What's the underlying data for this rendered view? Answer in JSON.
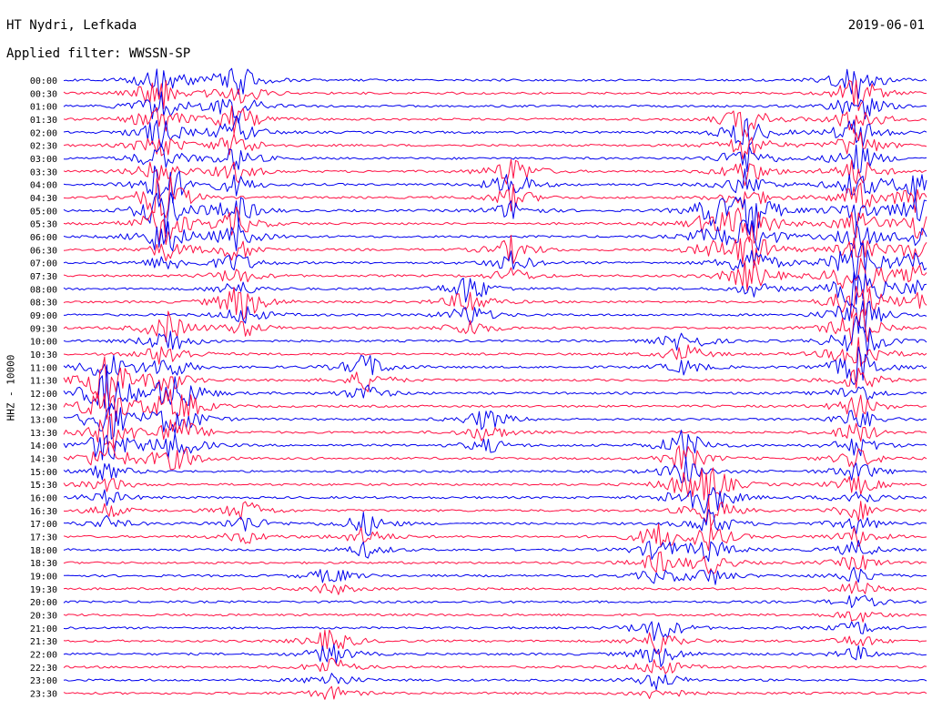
{
  "header": {
    "station": "HT Nydri, Lefkada",
    "filter": "Applied filter: WWSSN-SP",
    "date": "2019-06-01"
  },
  "y_axis_label": "HHZ - 10000",
  "colors": {
    "even_trace": "#0000ee",
    "odd_trace": "#ff1144"
  },
  "chart_data": {
    "type": "line",
    "title": "HT Nydri, Lefkada",
    "subtitle": "Applied filter: WWSSN-SP",
    "ylabel": "HHZ - 10000",
    "row_labels": [
      "00:00",
      "00:30",
      "01:00",
      "01:30",
      "02:00",
      "02:30",
      "03:00",
      "03:30",
      "04:00",
      "04:30",
      "05:00",
      "05:30",
      "06:00",
      "06:30",
      "07:00",
      "07:30",
      "08:00",
      "08:30",
      "09:00",
      "09:30",
      "10:00",
      "10:30",
      "11:00",
      "11:30",
      "12:00",
      "12:30",
      "13:00",
      "13:30",
      "14:00",
      "14:30",
      "15:00",
      "15:30",
      "16:00",
      "16:30",
      "17:00",
      "17:30",
      "18:00",
      "18:30",
      "19:00",
      "19:30",
      "20:00",
      "20:30",
      "21:00",
      "21:30",
      "22:00",
      "22:30",
      "23:00",
      "23:30"
    ],
    "x_domain": [
      0,
      1
    ],
    "events": [
      {
        "t": 0.05,
        "start": 22,
        "end": 29,
        "amp": 1.7
      },
      {
        "t": 0.05,
        "start": 23,
        "end": 34,
        "amp": 1.4
      },
      {
        "t": 0.11,
        "start": 0,
        "end": 12,
        "amp": 2.0
      },
      {
        "t": 0.12,
        "start": 8,
        "end": 14,
        "amp": 1.8
      },
      {
        "t": 0.12,
        "start": 19,
        "end": 29,
        "amp": 1.7
      },
      {
        "t": 0.14,
        "start": 24,
        "end": 29,
        "amp": 1.3
      },
      {
        "t": 0.2,
        "start": 0,
        "end": 8,
        "amp": 2.0
      },
      {
        "t": 0.2,
        "start": 10,
        "end": 17,
        "amp": 1.6
      },
      {
        "t": 0.21,
        "start": 17,
        "end": 19,
        "amp": 1.4
      },
      {
        "t": 0.21,
        "start": 33,
        "end": 35,
        "amp": 1.2
      },
      {
        "t": 0.31,
        "start": 38,
        "end": 39,
        "amp": 1.0
      },
      {
        "t": 0.31,
        "start": 43,
        "end": 47,
        "amp": 1.4
      },
      {
        "t": 0.35,
        "start": 22,
        "end": 24,
        "amp": 1.5
      },
      {
        "t": 0.35,
        "start": 34,
        "end": 36,
        "amp": 1.3
      },
      {
        "t": 0.47,
        "start": 16,
        "end": 19,
        "amp": 1.7
      },
      {
        "t": 0.49,
        "start": 26,
        "end": 28,
        "amp": 1.3
      },
      {
        "t": 0.52,
        "start": 7,
        "end": 10,
        "amp": 1.8
      },
      {
        "t": 0.52,
        "start": 13,
        "end": 15,
        "amp": 1.4
      },
      {
        "t": 0.69,
        "start": 35,
        "end": 38,
        "amp": 1.5
      },
      {
        "t": 0.69,
        "start": 42,
        "end": 47,
        "amp": 1.6
      },
      {
        "t": 0.72,
        "start": 20,
        "end": 22,
        "amp": 1.3
      },
      {
        "t": 0.72,
        "start": 28,
        "end": 32,
        "amp": 1.8
      },
      {
        "t": 0.75,
        "start": 10,
        "end": 13,
        "amp": 1.3
      },
      {
        "t": 0.75,
        "start": 31,
        "end": 38,
        "amp": 1.9
      },
      {
        "t": 0.79,
        "start": 3,
        "end": 15,
        "amp": 1.9
      },
      {
        "t": 0.8,
        "start": 10,
        "end": 16,
        "amp": 1.5
      },
      {
        "t": 0.92,
        "start": 0,
        "end": 22,
        "amp": 2.0
      },
      {
        "t": 0.92,
        "start": 14,
        "end": 44,
        "amp": 1.6
      },
      {
        "t": 0.99,
        "start": 8,
        "end": 17,
        "amp": 1.7
      }
    ]
  }
}
